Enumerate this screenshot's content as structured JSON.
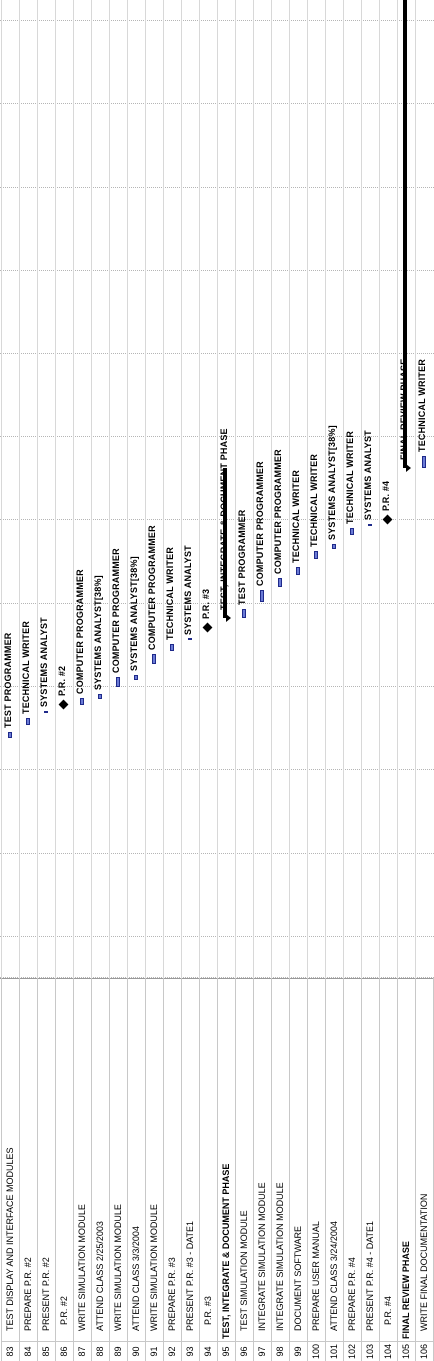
{
  "rows": [
    {
      "id": "83",
      "name": "TEST DISPLAY AND INTERFACE MODULES",
      "style": "task",
      "bar": {
        "start": 623,
        "end": 629
      },
      "resource": "TEST PROGRAMMER"
    },
    {
      "id": "84",
      "name": "PREPARE P.R. #2",
      "style": "task",
      "bar": {
        "start": 636,
        "end": 643
      },
      "resource": "TECHNICAL WRITER"
    },
    {
      "id": "85",
      "name": "PRESENT P.R. #2",
      "style": "task",
      "bar": {
        "start": 648,
        "end": 650
      },
      "resource": "SYSTEMS ANALYST"
    },
    {
      "id": "86",
      "name": "P.R. #2",
      "style": "milestone",
      "bar": {
        "start": 657,
        "end": 657
      },
      "resource": "P.R. #2"
    },
    {
      "id": "87",
      "name": "WRITE SIMULATION MODULE",
      "style": "task",
      "bar": {
        "start": 656,
        "end": 663
      },
      "resource": "COMPUTER PROGRAMMER"
    },
    {
      "id": "88",
      "name": "ATTEND CLASS 2/25/2003",
      "style": "task",
      "bar": {
        "start": 662,
        "end": 667
      },
      "resource": "SYSTEMS ANALYST[38%]"
    },
    {
      "id": "89",
      "name": "WRITE SIMULATION MODULE",
      "style": "task",
      "bar": {
        "start": 674,
        "end": 684
      },
      "resource": "COMPUTER PROGRAMMER"
    },
    {
      "id": "90",
      "name": "ATTEND CLASS 3/3/2004",
      "style": "task",
      "bar": {
        "start": 681,
        "end": 686
      },
      "resource": "SYSTEMS ANALYST[38%]"
    },
    {
      "id": "91",
      "name": "WRITE SIMULATION MODULE",
      "style": "task",
      "bar": {
        "start": 697,
        "end": 707
      },
      "resource": "COMPUTER PROGRAMMER"
    },
    {
      "id": "92",
      "name": "PREPARE P.R. #3",
      "style": "task",
      "bar": {
        "start": 710,
        "end": 717
      },
      "resource": "TECHNICAL WRITER"
    },
    {
      "id": "93",
      "name": "PRESENT P.R. #3 - DATE1",
      "style": "task",
      "bar": {
        "start": 721,
        "end": 722
      },
      "resource": "SYSTEMS ANALYST"
    },
    {
      "id": "94",
      "name": "P.R. #3",
      "style": "milestone",
      "bar": {
        "start": 734,
        "end": 734
      },
      "resource": "P.R. #3"
    },
    {
      "id": "95",
      "name": "TEST, INTEGRATE & DOCUMENT PHASE",
      "style": "summary",
      "bar": {
        "start": 743,
        "end": 893
      },
      "resource": "TEST, INTEGRATE & DOCUMENT PHASE"
    },
    {
      "id": "96",
      "name": "TEST SIMULATION MODULE",
      "style": "task",
      "bar": {
        "start": 743,
        "end": 752
      },
      "resource": "TEST PROGRAMMER"
    },
    {
      "id": "97",
      "name": "INTEGRATE SIMULATION MODULE",
      "style": "task",
      "bar": {
        "start": 759,
        "end": 771
      },
      "resource": "COMPUTER PROGRAMMER"
    },
    {
      "id": "98",
      "name": "INTEGRATE SIMULATION MODULE",
      "style": "task",
      "bar": {
        "start": 774,
        "end": 783
      },
      "resource": "COMPUTER PROGRAMMER"
    },
    {
      "id": "99",
      "name": "DOCUMENT SOFTWARE",
      "style": "task",
      "bar": {
        "start": 786,
        "end": 794
      },
      "resource": "TECHNICAL WRITER"
    },
    {
      "id": "100",
      "name": "PREPARE USER MANUAL",
      "style": "task",
      "bar": {
        "start": 802,
        "end": 810
      },
      "resource": "TECHNICAL WRITER"
    },
    {
      "id": "101",
      "name": "ATTEND CLASS 3/24/2004",
      "style": "task",
      "bar": {
        "start": 812,
        "end": 817
      },
      "resource": "SYSTEMS ANALYST[38%]"
    },
    {
      "id": "102",
      "name": "PREPARE P.R. #4",
      "style": "task",
      "bar": {
        "start": 826,
        "end": 833
      },
      "resource": "TECHNICAL WRITER"
    },
    {
      "id": "103",
      "name": "PRESENT P.R. #4 - DATE1",
      "style": "task",
      "bar": {
        "start": 835,
        "end": 837
      },
      "resource": "SYSTEMS ANALYST"
    },
    {
      "id": "104",
      "name": "P.R. #4",
      "style": "milestone",
      "bar": {
        "start": 842,
        "end": 842
      },
      "resource": "P.R. #4"
    },
    {
      "id": "105",
      "name": "FINAL REVIEW PHASE",
      "style": "summary",
      "bar": {
        "start": 893,
        "end": 1361
      },
      "resource": "FINAL REVIEW PHASE"
    },
    {
      "id": "106",
      "name": "WRITE FINAL DOCUMENTATION",
      "style": "task",
      "bar": {
        "start": 893,
        "end": 905
      },
      "resource": "TECHNICAL WRITER"
    }
  ],
  "colors": {
    "bar_fill": "#6b7bd6",
    "bar_border": "#1f2a8a",
    "summary": "#000000"
  }
}
